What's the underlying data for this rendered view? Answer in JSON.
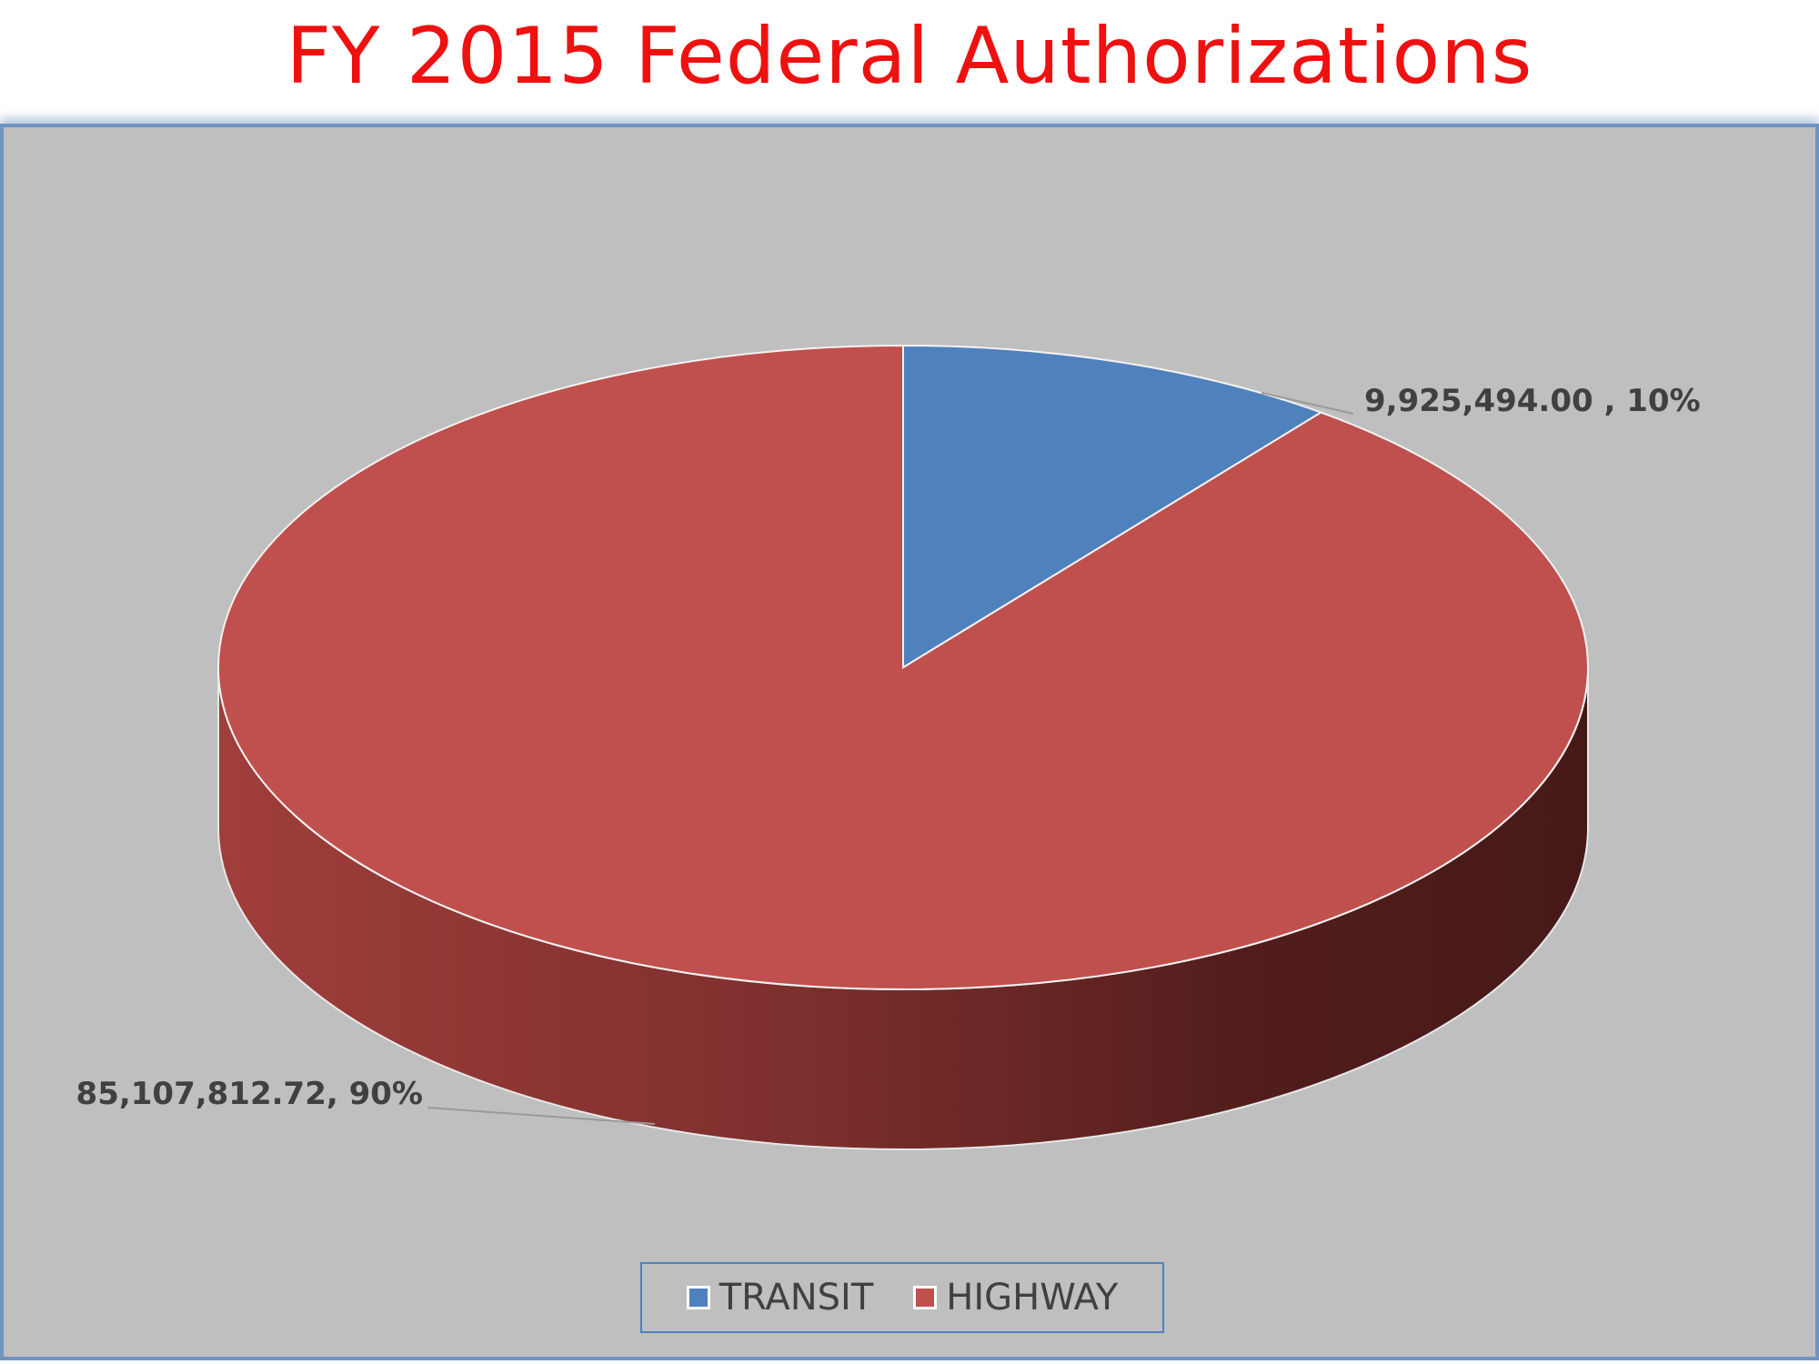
{
  "title": "FY 2015 Federal Authorizations",
  "colors": {
    "transit": "#4f81bd",
    "highway": "#c0504d",
    "background": "#bfbfbf",
    "title": "#ee1111",
    "label": "#404040"
  },
  "chart_data": {
    "type": "pie",
    "title": "FY 2015 Federal Authorizations",
    "style": "3d",
    "legend_position": "bottom",
    "slices": [
      {
        "name": "TRANSIT",
        "value": 9925494.0,
        "percent": 10,
        "color": "#4f81bd",
        "label": "9,925,494.00 , 10%"
      },
      {
        "name": "HIGHWAY",
        "value": 85107812.72,
        "percent": 90,
        "color": "#c0504d",
        "label": "85,107,812.72, 90%"
      }
    ]
  },
  "legend": {
    "items": [
      {
        "label": "TRANSIT",
        "color": "#4f81bd"
      },
      {
        "label": "HIGHWAY",
        "color": "#c0504d"
      }
    ]
  }
}
